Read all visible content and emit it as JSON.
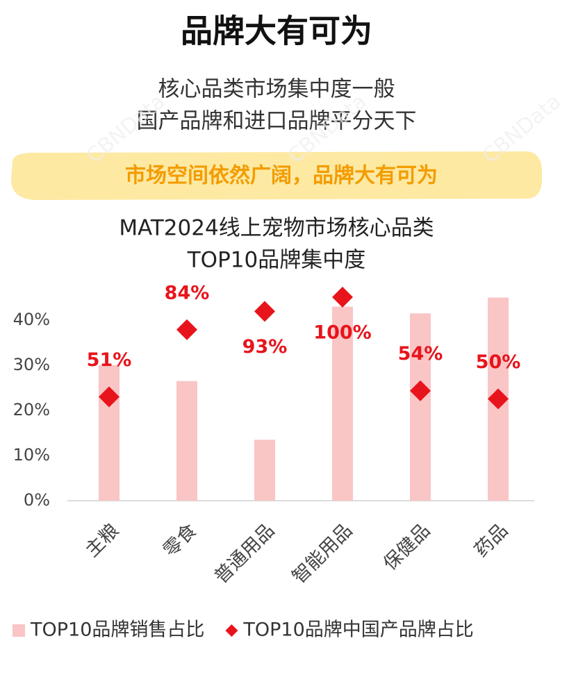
{
  "header": {
    "title": "品牌大有可为",
    "subtitle": [
      "核心品类市场集中度一般",
      "国产品牌和进口品牌平分天下"
    ],
    "highlight": "市场空间依然广阔，品牌大有可为"
  },
  "watermark": "CBNData",
  "chart_data": {
    "type": "bar",
    "title": [
      "MAT2024线上宠物市场核心品类",
      "TOP10品牌集中度"
    ],
    "categories": [
      "主粮",
      "零食",
      "普通用品",
      "智能用品",
      "保健品",
      "药品"
    ],
    "series": [
      {
        "name": "TOP10品牌销售占比",
        "color": "#fac5c5",
        "values": [
          30,
          26.5,
          13.5,
          43,
          41.5,
          45
        ]
      },
      {
        "name": "TOP10品牌中国产品牌占比",
        "color": "#e8141c",
        "axis": "y2",
        "marker": "diamond",
        "values": [
          51,
          84,
          93,
          100,
          54,
          50
        ],
        "value_labels": [
          "51%",
          "84%",
          "93%",
          "100%",
          "54%",
          "50%"
        ]
      }
    ],
    "ylim": [
      0,
      46
    ],
    "yticks": [
      {
        "value": 0,
        "label": "0%"
      },
      {
        "value": 10,
        "label": "10%"
      },
      {
        "value": 20,
        "label": "20%"
      },
      {
        "value": 30,
        "label": "30%"
      },
      {
        "value": 40,
        "label": "40%"
      }
    ],
    "y2lim": [
      0,
      102
    ],
    "grid": false,
    "legend": "bottom"
  }
}
